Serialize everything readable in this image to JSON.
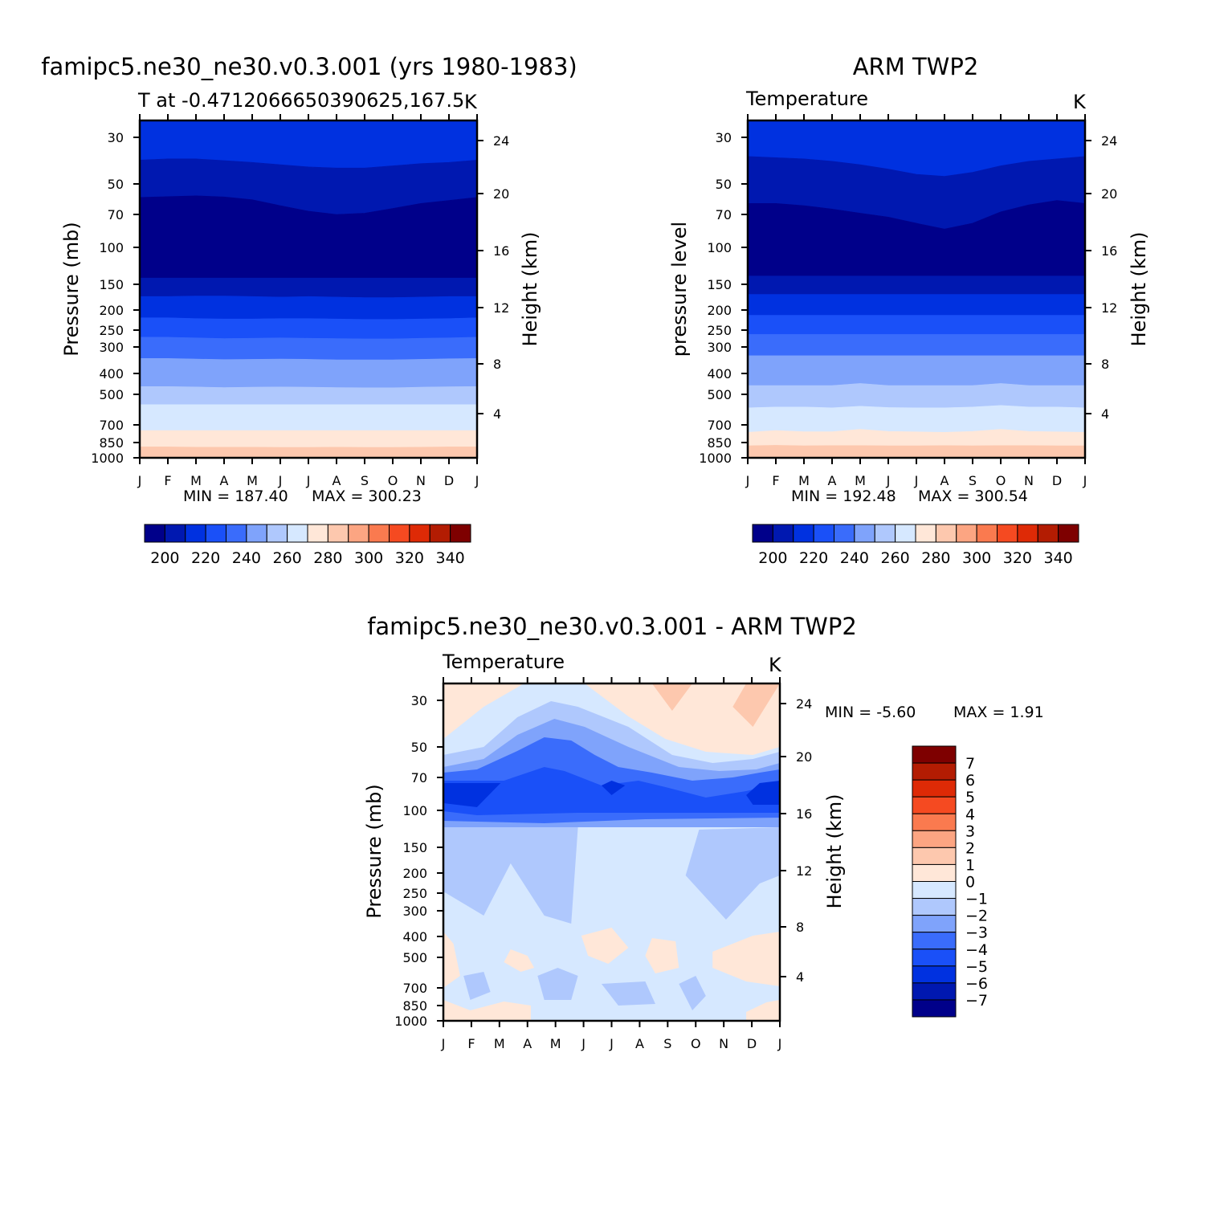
{
  "palette": {
    "temperature": [
      "#00008a",
      "#0018b0",
      "#0031e0",
      "#1a50f8",
      "#3a6cfb",
      "#7fa3fb",
      "#afc8fd",
      "#d6e8ff",
      "#ffe7d8",
      "#fdc8ae",
      "#fca582",
      "#fa7a4f",
      "#f54a21",
      "#de2a06",
      "#b31c02",
      "#7e0000"
    ],
    "difference": [
      "#00008a",
      "#0018b0",
      "#0031e0",
      "#1a50f8",
      "#3a6cfb",
      "#7fa3fb",
      "#afc8fd",
      "#d6e8ff",
      "#ffe7d8",
      "#fdc8ae",
      "#fca582",
      "#fa7a4f",
      "#f54a21",
      "#de2a06",
      "#b31c02",
      "#7e0000"
    ]
  },
  "chart_data": [
    {
      "type": "heatmap",
      "id": "model",
      "title": "famipc5.ne30_ne30.v0.3.001 (yrs 1980-1983)",
      "subtitle_left": "T at -0.4712066650390625,167.5",
      "subtitle_right": "K",
      "ylabel": "Pressure (mb)",
      "y2label": "Height (km)",
      "x_ticks": [
        "J",
        "F",
        "M",
        "A",
        "M",
        "J",
        "J",
        "A",
        "S",
        "O",
        "N",
        "D",
        "J"
      ],
      "y_ticks": [
        "30",
        "50",
        "70",
        "100",
        "150",
        "200",
        "250",
        "300",
        "400",
        "500",
        "700",
        "850",
        "1000"
      ],
      "y_tick_values": [
        30,
        50,
        70,
        100,
        150,
        200,
        250,
        300,
        400,
        500,
        700,
        850,
        1000
      ],
      "y2_ticks": [
        "24",
        "20",
        "16",
        "12",
        "8",
        "4"
      ],
      "y2_tick_values": [
        24,
        20,
        16,
        12,
        8,
        4
      ],
      "min_text": "MIN = 187.40",
      "max_text": "MAX = 300.23",
      "colorbar_labels": [
        "200",
        "220",
        "240",
        "260",
        "280",
        "300",
        "320",
        "340"
      ],
      "colorbar_levels": [
        195,
        200,
        205,
        210,
        215,
        220,
        225,
        230,
        235,
        240,
        245,
        250,
        255,
        260,
        265,
        270,
        275,
        280,
        285,
        290,
        295,
        300,
        305,
        310,
        315,
        320,
        325,
        330,
        335,
        340
      ],
      "color_index_top_down": [
        2,
        1,
        0,
        1,
        2,
        3,
        4,
        5,
        6,
        7,
        8,
        9,
        10
      ],
      "boundaries": [
        [
          38.5,
          38,
          38,
          38.7,
          39.5,
          40.5,
          41.5,
          42,
          42,
          41,
          40,
          39.5,
          38.5
        ],
        [
          58,
          57.5,
          57,
          57.7,
          59.5,
          63.5,
          67.5,
          70,
          69,
          65.5,
          62,
          60,
          58
        ],
        [
          140,
          140,
          140,
          140,
          140,
          140,
          140,
          140,
          140,
          140,
          140,
          140,
          140
        ],
        [
          172,
          172,
          171,
          171,
          172,
          173,
          172,
          173,
          174,
          174,
          173,
          172,
          172
        ],
        [
          218,
          218,
          220,
          221,
          221,
          220,
          220,
          221,
          222,
          222,
          221,
          220,
          218
        ],
        [
          270,
          270,
          272,
          274,
          273,
          272,
          273,
          274,
          275,
          275,
          273,
          272,
          270
        ],
        [
          340,
          340,
          342,
          344,
          343,
          342,
          343,
          345,
          345,
          345,
          343,
          341,
          340
        ],
        [
          460,
          460,
          462,
          465,
          463,
          462,
          463,
          465,
          466,
          466,
          463,
          461,
          460
        ],
        [
          560,
          560,
          560,
          560,
          560,
          560,
          560,
          560,
          560,
          560,
          560,
          560,
          560
        ],
        [
          745,
          745,
          745,
          745,
          745,
          745,
          745,
          745,
          745,
          745,
          745,
          745,
          745
        ],
        [
          890,
          890,
          893,
          893,
          893,
          895,
          895,
          893,
          895,
          895,
          893,
          890,
          890
        ]
      ]
    },
    {
      "type": "heatmap",
      "id": "obs",
      "title": "ARM TWP2",
      "subtitle_left": "Temperature",
      "subtitle_right": "K",
      "ylabel": "pressure level",
      "y2label": "Height (km)",
      "x_ticks": [
        "J",
        "F",
        "M",
        "A",
        "M",
        "J",
        "J",
        "A",
        "S",
        "O",
        "N",
        "D",
        "J"
      ],
      "y_ticks": [
        "30",
        "50",
        "70",
        "100",
        "150",
        "200",
        "250",
        "300",
        "400",
        "500",
        "700",
        "850",
        "1000"
      ],
      "y_tick_values": [
        30,
        50,
        70,
        100,
        150,
        200,
        250,
        300,
        400,
        500,
        700,
        850,
        1000
      ],
      "y2_ticks": [
        "24",
        "20",
        "16",
        "12",
        "8",
        "4"
      ],
      "y2_tick_values": [
        24,
        20,
        16,
        12,
        8,
        4
      ],
      "min_text": "MIN = 192.48",
      "max_text": "MAX = 300.54",
      "colorbar_labels": [
        "200",
        "220",
        "240",
        "260",
        "280",
        "300",
        "320",
        "340"
      ],
      "colorbar_levels": [
        195,
        200,
        205,
        210,
        215,
        220,
        225,
        230,
        235,
        240,
        245,
        250,
        255,
        260,
        265,
        270,
        275,
        280,
        285,
        290,
        295,
        300,
        305,
        310,
        315,
        320,
        325,
        330,
        335,
        340
      ],
      "color_index_top_down": [
        2,
        1,
        0,
        1,
        2,
        3,
        4,
        5,
        6,
        7,
        8,
        9,
        10
      ],
      "boundaries": [
        [
          37,
          37.5,
          38,
          39,
          40.5,
          42.5,
          45,
          46,
          44,
          41,
          39,
          38,
          37
        ],
        [
          62,
          62,
          63.5,
          66,
          69,
          72,
          77,
          82,
          77,
          68,
          63,
          60,
          62
        ],
        [
          137,
          137,
          137,
          137,
          137,
          137,
          137,
          137,
          137,
          137,
          137,
          137,
          137
        ],
        [
          168,
          168,
          168,
          168,
          168,
          168,
          168,
          168,
          168,
          168,
          168,
          168,
          168
        ],
        [
          212,
          212,
          212,
          212,
          212,
          212,
          212,
          212,
          212,
          212,
          212,
          212,
          212
        ],
        [
          262,
          262,
          262,
          262,
          262,
          262,
          262,
          262,
          262,
          262,
          262,
          262,
          262
        ],
        [
          330,
          330,
          330,
          330,
          330,
          330,
          330,
          330,
          330,
          330,
          330,
          330,
          330
        ],
        [
          455,
          455,
          455,
          455,
          445,
          455,
          455,
          455,
          455,
          445,
          455,
          455,
          455
        ],
        [
          580,
          575,
          575,
          580,
          570,
          578,
          580,
          580,
          575,
          565,
          575,
          575,
          580
        ],
        [
          760,
          745,
          755,
          755,
          735,
          752,
          756,
          760,
          752,
          735,
          752,
          756,
          760
        ],
        [
          880,
          875,
          880,
          878,
          878,
          880,
          880,
          878,
          880,
          878,
          878,
          880,
          880
        ]
      ]
    },
    {
      "type": "heatmap",
      "id": "difference",
      "title": "famipc5.ne30_ne30.v0.3.001 - ARM TWP2",
      "subtitle_left": "Temperature",
      "subtitle_right": "K",
      "ylabel": "Pressure (mb)",
      "y2label": "Height (km)",
      "x_ticks": [
        "J",
        "F",
        "M",
        "A",
        "M",
        "J",
        "J",
        "A",
        "S",
        "O",
        "N",
        "D",
        "J"
      ],
      "y_ticks": [
        "30",
        "50",
        "70",
        "100",
        "150",
        "200",
        "250",
        "300",
        "400",
        "500",
        "700",
        "850",
        "1000"
      ],
      "y_tick_values": [
        30,
        50,
        70,
        100,
        150,
        200,
        250,
        300,
        400,
        500,
        700,
        850,
        1000
      ],
      "y2_ticks": [
        "24",
        "20",
        "16",
        "12",
        "8",
        "4"
      ],
      "y2_tick_values": [
        24,
        20,
        16,
        12,
        8,
        4
      ],
      "min_text": "MIN =   -5.60",
      "max_text": "MAX =    1.91",
      "colorbar_labels": [
        "7",
        "6",
        "5",
        "4",
        "3",
        "2",
        "1",
        "0",
        "-1",
        "-2",
        "-3",
        "-4",
        "-5",
        "-6",
        "-7"
      ],
      "colorbar_levels": [
        -7,
        -6,
        -5,
        -4,
        -3,
        -2,
        -1,
        0,
        1,
        2,
        3,
        4,
        5,
        6,
        7
      ],
      "regions": {
        "warm_top_corners": [
          [
            -7,
            0.5,
            1.3
          ],
          [
            6.5,
            0.5,
            1.3
          ]
        ],
        "cold_layer": "-5 to -6 K near 70-100 mb",
        "weak_cooling": "-1 K over most of the column below 150 mb"
      }
    }
  ]
}
